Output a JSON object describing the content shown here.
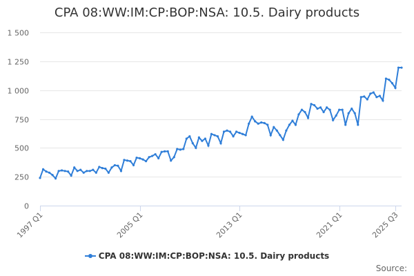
{
  "chart_data": {
    "type": "line",
    "title": "CPA 08:WW:IM:CP:BOP:NSA: 10.5. Dairy products",
    "xlabel": "",
    "ylabel": "",
    "ylim": [
      0,
      1500
    ],
    "yticks": [
      0,
      250,
      500,
      750,
      1000,
      1250,
      1500
    ],
    "ytick_labels": [
      "0",
      "250",
      "500",
      "750",
      "1 000",
      "1 250",
      "1 500"
    ],
    "xtick_labels": [
      "1997 Q1",
      "2005 Q1",
      "2013 Q1",
      "2021 Q1",
      "2025 Q3"
    ],
    "xtick_index": [
      0,
      32,
      64,
      96,
      114
    ],
    "grid": true,
    "legend_position": "bottom-center",
    "series": [
      {
        "name": "CPA 08:WW:IM:CP:BOP:NSA: 10.5. Dairy products",
        "color": "#2f7ed8",
        "values": [
          240,
          315,
          295,
          285,
          265,
          235,
          300,
          305,
          300,
          295,
          260,
          330,
          300,
          310,
          285,
          300,
          300,
          310,
          285,
          335,
          325,
          320,
          285,
          330,
          350,
          345,
          300,
          395,
          390,
          385,
          350,
          415,
          410,
          400,
          385,
          420,
          430,
          445,
          410,
          465,
          470,
          470,
          390,
          420,
          490,
          485,
          490,
          580,
          600,
          540,
          500,
          590,
          560,
          580,
          520,
          620,
          610,
          600,
          540,
          640,
          650,
          640,
          600,
          640,
          630,
          620,
          610,
          710,
          770,
          730,
          710,
          720,
          715,
          700,
          610,
          680,
          650,
          610,
          570,
          650,
          700,
          735,
          700,
          790,
          830,
          810,
          760,
          880,
          870,
          840,
          850,
          810,
          850,
          830,
          740,
          780,
          830,
          830,
          700,
          800,
          840,
          800,
          700,
          940,
          945,
          920,
          970,
          980,
          940,
          950,
          910,
          1100,
          1090,
          1060,
          1020,
          1195,
          1195
        ]
      }
    ]
  },
  "legend": {
    "label": "CPA 08:WW:IM:CP:BOP:NSA: 10.5. Dairy products"
  },
  "credits": {
    "label": "Source:"
  }
}
